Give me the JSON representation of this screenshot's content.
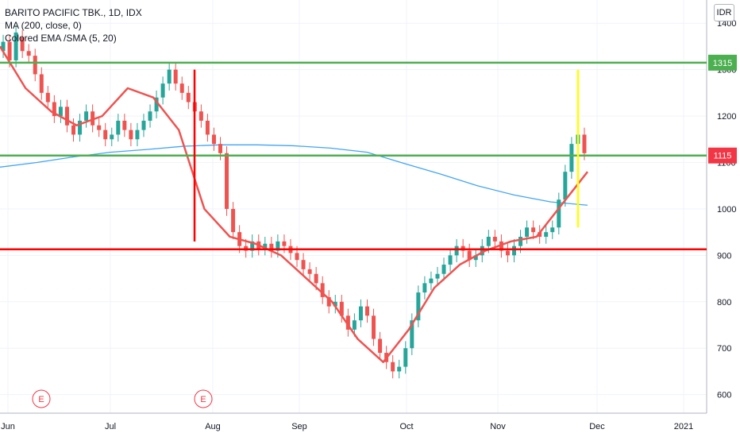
{
  "header": {
    "title": "BARITO PACIFIC TBK., 1D, IDX",
    "indicators": [
      "MA (200, close, 0)",
      "Colored EMA /SMA (5, 20)"
    ]
  },
  "currency": "IDR",
  "chart_data": {
    "type": "candlestick",
    "title": "BARITO PACIFIC TBK., 1D, IDX",
    "x_labels": [
      "Jun",
      "Jul",
      "Aug",
      "Sep",
      "Oct",
      "Nov",
      "Dec",
      "2021"
    ],
    "y_ticks": [
      600,
      700,
      800,
      900,
      1000,
      1100,
      1200,
      1300,
      1400
    ],
    "ylim": [
      560,
      1450
    ],
    "price_labels": [
      {
        "value": 1315,
        "text": "1315",
        "color": "#4caf50"
      },
      {
        "value": 1115,
        "text": "1115",
        "color": "#f23645"
      }
    ],
    "horizontal_lines": [
      {
        "value": 1315,
        "color": "#4caf50"
      },
      {
        "value": 1115,
        "color": "#4caf50"
      },
      {
        "value": 913,
        "color": "#ff0000"
      }
    ],
    "earnings_markers": [
      "E",
      "E"
    ],
    "ma200": [
      1090,
      1100,
      1112,
      1122,
      1128,
      1135,
      1138,
      1138,
      1136,
      1131,
      1122,
      1098,
      1075,
      1050,
      1030,
      1015,
      1008
    ],
    "ema_series": [
      1350,
      1260,
      1210,
      1180,
      1200,
      1260,
      1240,
      1170,
      1000,
      940,
      925,
      900,
      850,
      800,
      720,
      670,
      740,
      830,
      880,
      910,
      930,
      940,
      1010,
      1080
    ],
    "candles": [
      [
        1340,
        1360
      ],
      [
        1360,
        1320
      ],
      [
        1320,
        1380
      ],
      [
        1370,
        1340
      ],
      [
        1340,
        1330
      ],
      [
        1330,
        1290
      ],
      [
        1290,
        1250
      ],
      [
        1250,
        1230
      ],
      [
        1230,
        1200
      ],
      [
        1200,
        1220
      ],
      [
        1220,
        1180
      ],
      [
        1180,
        1160
      ],
      [
        1160,
        1190
      ],
      [
        1190,
        1210
      ],
      [
        1210,
        1180
      ],
      [
        1180,
        1170
      ],
      [
        1170,
        1150
      ],
      [
        1150,
        1160
      ],
      [
        1160,
        1190
      ],
      [
        1190,
        1170
      ],
      [
        1170,
        1150
      ],
      [
        1150,
        1170
      ],
      [
        1170,
        1190
      ],
      [
        1190,
        1210
      ],
      [
        1210,
        1240
      ],
      [
        1240,
        1270
      ],
      [
        1270,
        1300
      ],
      [
        1300,
        1270
      ],
      [
        1270,
        1250
      ],
      [
        1250,
        1230
      ],
      [
        1230,
        1210
      ],
      [
        1210,
        1190
      ],
      [
        1190,
        1160
      ],
      [
        1160,
        1140
      ],
      [
        1140,
        1120
      ],
      [
        1120,
        1000
      ],
      [
        1000,
        950
      ],
      [
        950,
        920
      ],
      [
        920,
        910
      ],
      [
        910,
        930
      ],
      [
        930,
        915
      ],
      [
        915,
        925
      ],
      [
        925,
        910
      ],
      [
        910,
        930
      ],
      [
        930,
        920
      ],
      [
        920,
        905
      ],
      [
        905,
        890
      ],
      [
        890,
        870
      ],
      [
        870,
        860
      ],
      [
        860,
        840
      ],
      [
        840,
        810
      ],
      [
        810,
        790
      ],
      [
        790,
        800
      ],
      [
        800,
        770
      ],
      [
        770,
        740
      ],
      [
        740,
        760
      ],
      [
        760,
        790
      ],
      [
        790,
        770
      ],
      [
        770,
        720
      ],
      [
        720,
        690
      ],
      [
        690,
        670
      ],
      [
        670,
        650
      ],
      [
        650,
        660
      ],
      [
        660,
        700
      ],
      [
        700,
        760
      ],
      [
        760,
        820
      ],
      [
        820,
        840
      ],
      [
        840,
        850
      ],
      [
        850,
        860
      ],
      [
        860,
        880
      ],
      [
        880,
        900
      ],
      [
        900,
        920
      ],
      [
        920,
        910
      ],
      [
        910,
        890
      ],
      [
        890,
        900
      ],
      [
        900,
        920
      ],
      [
        920,
        940
      ],
      [
        940,
        930
      ],
      [
        930,
        910
      ],
      [
        910,
        900
      ],
      [
        900,
        920
      ],
      [
        920,
        940
      ],
      [
        940,
        960
      ],
      [
        960,
        950
      ],
      [
        950,
        940
      ],
      [
        940,
        950
      ],
      [
        950,
        960
      ],
      [
        960,
        1020
      ],
      [
        1020,
        1080
      ],
      [
        1080,
        1140
      ],
      [
        1140,
        1160
      ],
      [
        1160,
        1120
      ]
    ],
    "zones": [
      {
        "color": "#ff0000",
        "x": [
          1,
          1
        ],
        "y": [
          930,
          1300
        ]
      },
      {
        "color": "#ffff00",
        "x": [
          1,
          1
        ],
        "y": [
          960,
          1300
        ]
      }
    ]
  }
}
